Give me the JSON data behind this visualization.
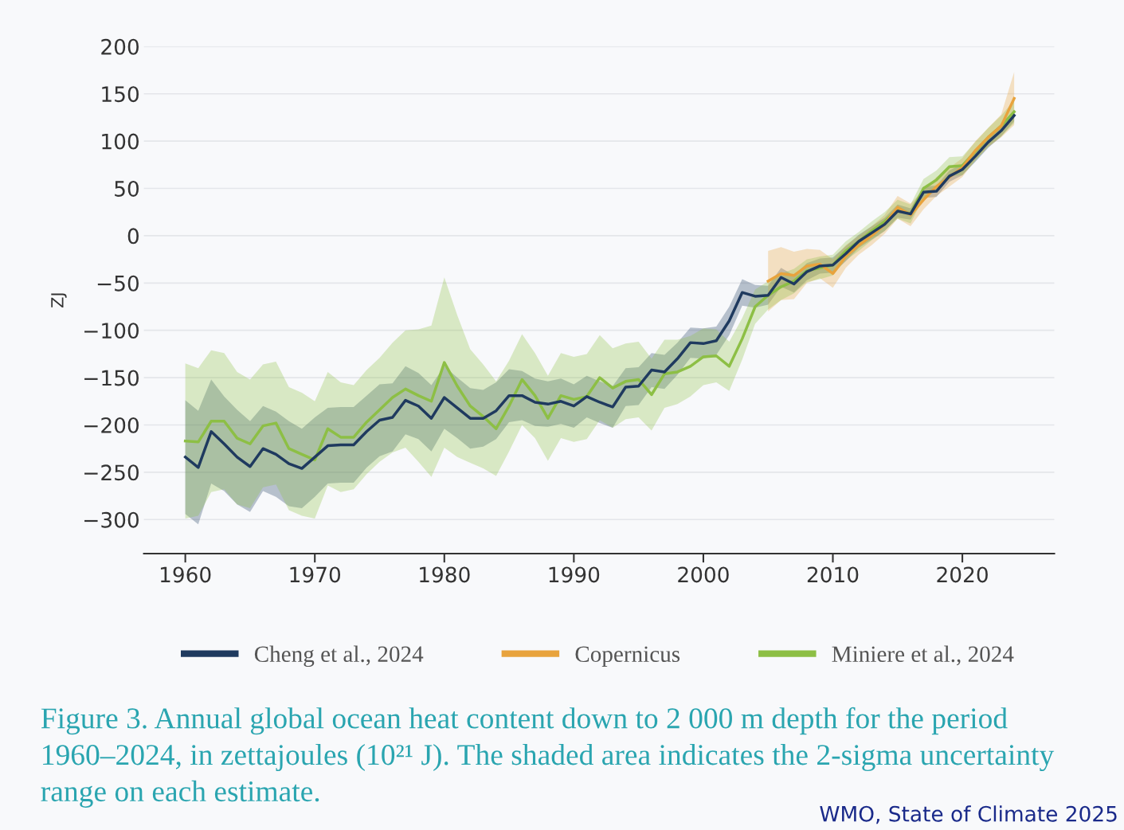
{
  "chart_data": {
    "type": "line",
    "ylabel": "ZJ",
    "xlim": [
      1956.8,
      2027.1
    ],
    "xticks": [
      1960,
      1970,
      1980,
      1990,
      2000,
      2010,
      2020
    ],
    "ylim": [
      -336,
      200
    ],
    "yticks": [
      {
        "value": -300,
        "label": "−300"
      },
      {
        "value": -250,
        "label": "−250"
      },
      {
        "value": -200,
        "label": "−200"
      },
      {
        "value": -150,
        "label": "−150"
      },
      {
        "value": -100,
        "label": "−100"
      },
      {
        "value": -50,
        "label": "−50"
      },
      0,
      50,
      100,
      150,
      200
    ],
    "grid": "y",
    "legend": "bottom",
    "line_style": "solid",
    "marker": "none",
    "series": [
      {
        "name": "Cheng et al., 2024",
        "color": "#1f3a5f",
        "x": [
          1960,
          1961,
          1962,
          1963,
          1964,
          1965,
          1966,
          1967,
          1968,
          1969,
          1970,
          1971,
          1972,
          1973,
          1974,
          1975,
          1976,
          1977,
          1978,
          1979,
          1980,
          1981,
          1982,
          1983,
          1984,
          1985,
          1986,
          1987,
          1988,
          1989,
          1990,
          1991,
          1992,
          1993,
          1994,
          1995,
          1996,
          1997,
          1998,
          1999,
          2000,
          2001,
          2002,
          2003,
          2004,
          2005,
          2006,
          2007,
          2008,
          2009,
          2010,
          2011,
          2012,
          2013,
          2014,
          2015,
          2016,
          2017,
          2018,
          2019,
          2020,
          2021,
          2022,
          2023,
          2024
        ],
        "values": [
          -234,
          -245,
          -207,
          -220,
          -234,
          -244,
          -225,
          -231,
          -241,
          -246,
          -234,
          -222,
          -221,
          -221,
          -207,
          -195,
          -192,
          -174,
          -180,
          -193,
          -171,
          -182,
          -193,
          -193,
          -185,
          -169,
          -169,
          -176,
          -178,
          -175,
          -180,
          -170,
          -176,
          -181,
          -160,
          -159,
          -142,
          -144,
          -130,
          -113,
          -114,
          -111,
          -90,
          -60,
          -64,
          -63,
          -44,
          -51,
          -38,
          -32,
          -31,
          -19,
          -6,
          3,
          12,
          26,
          23,
          46,
          47,
          63,
          70,
          84,
          99,
          111,
          127
        ],
        "lower": [
          -294,
          -305,
          -262,
          -270,
          -284,
          -292,
          -270,
          -276,
          -286,
          -288,
          -276,
          -262,
          -261,
          -261,
          -245,
          -233,
          -228,
          -210,
          -215,
          -228,
          -204,
          -214,
          -225,
          -223,
          -215,
          -197,
          -195,
          -201,
          -202,
          -199,
          -203,
          -192,
          -198,
          -203,
          -180,
          -179,
          -160,
          -162,
          -147,
          -129,
          -130,
          -126,
          -105,
          -74,
          -76,
          -73,
          -54,
          -60,
          -47,
          -40,
          -39,
          -27,
          -13,
          -4,
          5,
          19,
          17,
          40,
          41,
          57,
          64,
          78,
          93,
          105,
          121
        ],
        "upper": [
          -174,
          -185,
          -152,
          -170,
          -184,
          -196,
          -180,
          -186,
          -196,
          -204,
          -192,
          -182,
          -181,
          -181,
          -169,
          -157,
          -156,
          -138,
          -145,
          -158,
          -138,
          -150,
          -161,
          -163,
          -155,
          -141,
          -143,
          -151,
          -154,
          -151,
          -157,
          -148,
          -154,
          -159,
          -140,
          -139,
          -124,
          -126,
          -113,
          -97,
          -98,
          -96,
          -75,
          -46,
          -52,
          -53,
          -34,
          -42,
          -29,
          -24,
          -23,
          -11,
          1,
          10,
          19,
          33,
          29,
          52,
          53,
          69,
          76,
          90,
          105,
          117,
          133
        ]
      },
      {
        "name": "Copernicus",
        "color": "#e8a33d",
        "x": [
          2005,
          2006,
          2007,
          2008,
          2009,
          2010,
          2011,
          2012,
          2013,
          2014,
          2015,
          2016,
          2017,
          2018,
          2019,
          2020,
          2021,
          2022,
          2023,
          2024
        ],
        "values": [
          -48,
          -40,
          -42,
          -32,
          -30,
          -40,
          -22,
          -10,
          0,
          12,
          30,
          22,
          38,
          52,
          62,
          72,
          90,
          104,
          116,
          145
        ],
        "lower": [
          -80,
          -68,
          -67,
          -50,
          -45,
          -55,
          -34,
          -20,
          -10,
          2,
          18,
          10,
          28,
          42,
          52,
          62,
          80,
          94,
          104,
          117
        ],
        "upper": [
          -16,
          -12,
          -17,
          -14,
          -15,
          -25,
          -10,
          0,
          10,
          22,
          42,
          34,
          48,
          62,
          72,
          82,
          100,
          114,
          128,
          173
        ]
      },
      {
        "name": "Miniere et al., 2024",
        "color": "#8dbf45",
        "x": [
          1960,
          1961,
          1962,
          1963,
          1964,
          1965,
          1966,
          1967,
          1968,
          1969,
          1970,
          1971,
          1972,
          1973,
          1974,
          1975,
          1976,
          1977,
          1978,
          1979,
          1980,
          1981,
          1982,
          1983,
          1984,
          1985,
          1986,
          1987,
          1988,
          1989,
          1990,
          1991,
          1992,
          1993,
          1994,
          1995,
          1996,
          1997,
          1998,
          1999,
          2000,
          2001,
          2002,
          2003,
          2004,
          2005,
          2006,
          2007,
          2008,
          2009,
          2010,
          2011,
          2012,
          2013,
          2014,
          2015,
          2016,
          2017,
          2018,
          2019,
          2020,
          2021,
          2022,
          2023,
          2024
        ],
        "values": [
          -217,
          -218,
          -196,
          -196,
          -214,
          -220,
          -201,
          -198,
          -225,
          -231,
          -237,
          -204,
          -213,
          -213,
          -197,
          -184,
          -171,
          -162,
          -169,
          -175,
          -134,
          -159,
          -180,
          -191,
          -204,
          -180,
          -152,
          -169,
          -193,
          -169,
          -173,
          -170,
          -150,
          -161,
          -154,
          -152,
          -168,
          -146,
          -144,
          -138,
          -128,
          -127,
          -138,
          -109,
          -75,
          -63,
          -54,
          -48,
          -37,
          -34,
          -31,
          -16,
          -6,
          5,
          15,
          28,
          23,
          50,
          59,
          73,
          74,
          89,
          104,
          116,
          131
        ],
        "lower": [
          -299,
          -296,
          -271,
          -268,
          -284,
          -288,
          -266,
          -263,
          -290,
          -296,
          -299,
          -264,
          -271,
          -268,
          -252,
          -239,
          -229,
          -224,
          -239,
          -255,
          -224,
          -234,
          -240,
          -246,
          -254,
          -228,
          -200,
          -214,
          -238,
          -214,
          -218,
          -215,
          -195,
          -203,
          -194,
          -192,
          -206,
          -182,
          -178,
          -170,
          -158,
          -155,
          -164,
          -131,
          -93,
          -78,
          -68,
          -61,
          -49,
          -46,
          -42,
          -26,
          -16,
          -5,
          5,
          18,
          13,
          40,
          49,
          63,
          64,
          79,
          94,
          105,
          119
        ],
        "upper": [
          -135,
          -140,
          -121,
          -124,
          -144,
          -152,
          -136,
          -133,
          -160,
          -166,
          -175,
          -144,
          -155,
          -158,
          -142,
          -129,
          -113,
          -100,
          -99,
          -95,
          -44,
          -84,
          -120,
          -136,
          -154,
          -132,
          -104,
          -124,
          -148,
          -124,
          -128,
          -125,
          -105,
          -119,
          -114,
          -112,
          -130,
          -110,
          -110,
          -106,
          -98,
          -99,
          -112,
          -87,
          -57,
          -48,
          -40,
          -35,
          -25,
          -22,
          -20,
          -6,
          4,
          15,
          25,
          38,
          33,
          60,
          69,
          83,
          84,
          99,
          114,
          127,
          143
        ]
      }
    ],
    "annotations": [
      "Figure 3. Annual global ocean heat content down to 2 000 m depth for the period 1960–2024, in zettajoules (10²¹ J). The shaded area indicates the 2-sigma uncertainty range on each estimate.",
      "WMO, State of Climate 2025"
    ]
  }
}
